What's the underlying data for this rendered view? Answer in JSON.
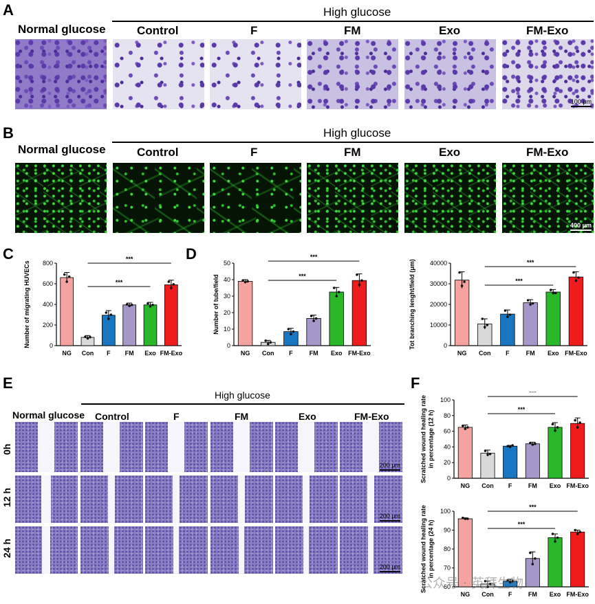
{
  "panel_letters": {
    "A": "A",
    "B": "B",
    "C": "C",
    "D": "D",
    "E": "E",
    "F": "F"
  },
  "panel_A": {
    "high_glucose": "High glucose",
    "normal_glucose": "Normal glucose",
    "groups": [
      "Control",
      "F",
      "FM",
      "Exo",
      "FM-Exo"
    ],
    "scale_bar": "100 μm"
  },
  "panel_B": {
    "high_glucose": "High glucose",
    "normal_glucose": "Normal glucose",
    "groups": [
      "Control",
      "F",
      "FM",
      "Exo",
      "FM-Exo"
    ],
    "scale_bar": "400 μm"
  },
  "panel_E": {
    "high_glucose": "High glucose",
    "normal_glucose": "Normal glucose",
    "groups": [
      "Control",
      "F",
      "FM",
      "Exo",
      "FM-Exo"
    ],
    "rows": [
      "0h",
      "12 h",
      "24 h"
    ],
    "scale_bar": "200 μm"
  },
  "watermark": "公众号 · 英拜生物",
  "colors": {
    "NG": "#f4a3a0",
    "Con": "#d9d9d9",
    "F": "#1877c0",
    "FM": "#a597c8",
    "Exo": "#2ab82a",
    "FM-Exo": "#ee1c1c"
  },
  "chart_data": [
    {
      "id": "C",
      "type": "bar",
      "categories": [
        "NG",
        "Con",
        "F",
        "FM",
        "Exo",
        "FM-Exo"
      ],
      "values": [
        660,
        80,
        295,
        395,
        395,
        590
      ],
      "errors": [
        50,
        18,
        45,
        18,
        25,
        45
      ],
      "points": [
        [
          690,
          620,
          670
        ],
        [
          85,
          70,
          82
        ],
        [
          320,
          260,
          300
        ],
        [
          400,
          385,
          395
        ],
        [
          410,
          380,
          395
        ],
        [
          620,
          560,
          595
        ]
      ],
      "ylabel": "Number of migrating HUVECs",
      "ylim": [
        0,
        800
      ],
      "yticks": [
        0,
        200,
        400,
        600,
        800
      ],
      "sig": [
        {
          "from": 1,
          "to": 5,
          "label": "***"
        },
        {
          "from": 1,
          "to": 4,
          "label": "***"
        }
      ]
    },
    {
      "id": "D",
      "type": "bar",
      "categories": [
        "NG",
        "Con",
        "F",
        "FM",
        "Exo",
        "FM-Exo"
      ],
      "values": [
        39,
        2,
        8.5,
        16.5,
        32.5,
        39.5
      ],
      "errors": [
        1,
        1.2,
        2,
        2,
        2.8,
        4
      ],
      "points": [
        [
          39.5,
          38.5,
          39
        ],
        [
          3,
          1,
          2
        ],
        [
          10,
          7,
          8.5
        ],
        [
          18,
          15,
          16.5
        ],
        [
          35,
          30,
          32.5
        ],
        [
          43,
          37,
          39.5
        ]
      ],
      "ylabel": "Number of tube/field",
      "ylim": [
        0,
        50
      ],
      "yticks": [
        0,
        10,
        20,
        30,
        40,
        50
      ],
      "sig": [
        {
          "from": 1,
          "to": 5,
          "label": "***"
        },
        {
          "from": 1,
          "to": 4,
          "label": "***"
        }
      ]
    },
    {
      "id": "D2",
      "type": "bar",
      "categories": [
        "NG",
        "Con",
        "F",
        "FM",
        "Exo",
        "FM-Exo"
      ],
      "values": [
        31800,
        10500,
        15300,
        20800,
        26000,
        33300
      ],
      "errors": [
        4000,
        2500,
        2000,
        1500,
        1200,
        2500
      ],
      "points": [
        [
          35500,
          29000,
          31000
        ],
        [
          13000,
          9000,
          10000
        ],
        [
          17000,
          14000,
          15000
        ],
        [
          22000,
          20000,
          20500
        ],
        [
          27000,
          25500,
          25500
        ],
        [
          35500,
          31500,
          33000
        ]
      ],
      "ylabel": "Tot branching lenght/field (μm)",
      "ylim": [
        0,
        40000
      ],
      "yticks": [
        0,
        10000,
        20000,
        30000,
        40000
      ],
      "sig": [
        {
          "from": 1,
          "to": 5,
          "label": "***"
        },
        {
          "from": 1,
          "to": 4,
          "label": "***"
        }
      ]
    },
    {
      "id": "F1",
      "type": "bar",
      "categories": [
        "NG",
        "Con",
        "F",
        "FM",
        "Exo",
        "FM-Exo"
      ],
      "values": [
        65,
        32,
        41,
        44,
        65,
        70
      ],
      "errors": [
        3,
        4,
        1,
        2,
        6,
        7
      ],
      "points": [
        [
          67,
          63,
          65
        ],
        [
          35,
          30,
          31
        ],
        [
          41,
          40,
          42
        ],
        [
          45,
          43,
          44
        ],
        [
          69,
          61,
          65
        ],
        [
          74,
          65,
          71
        ]
      ],
      "ylabel": "Scratched wound healing rate in percentage (12 h)",
      "ylim": [
        0,
        100
      ],
      "yticks": [
        0,
        20,
        40,
        60,
        80,
        100
      ],
      "sig": [
        {
          "from": 1,
          "to": 5,
          "label": "***"
        },
        {
          "from": 1,
          "to": 4,
          "label": "***"
        }
      ]
    },
    {
      "id": "F2",
      "type": "bar",
      "categories": [
        "NG",
        "Con",
        "F",
        "FM",
        "Exo",
        "FM-Exo"
      ],
      "values": [
        96,
        61.5,
        63,
        75,
        86,
        89
      ],
      "errors": [
        0.5,
        1.5,
        1,
        3.5,
        2,
        1
      ],
      "points": [
        [
          96.5,
          96,
          96
        ],
        [
          63,
          60,
          61.5
        ],
        [
          63.5,
          62.5,
          63
        ],
        [
          78,
          72,
          75
        ],
        [
          88,
          84,
          86
        ],
        [
          90,
          88,
          89
        ]
      ],
      "ylabel": "Scratched wound healing rate in percentage (24 h)",
      "ylim": [
        60,
        100
      ],
      "yticks": [
        60,
        70,
        80,
        90,
        100
      ],
      "sig": [
        {
          "from": 1,
          "to": 5,
          "label": "***"
        },
        {
          "from": 1,
          "to": 4,
          "label": "***"
        }
      ]
    }
  ]
}
